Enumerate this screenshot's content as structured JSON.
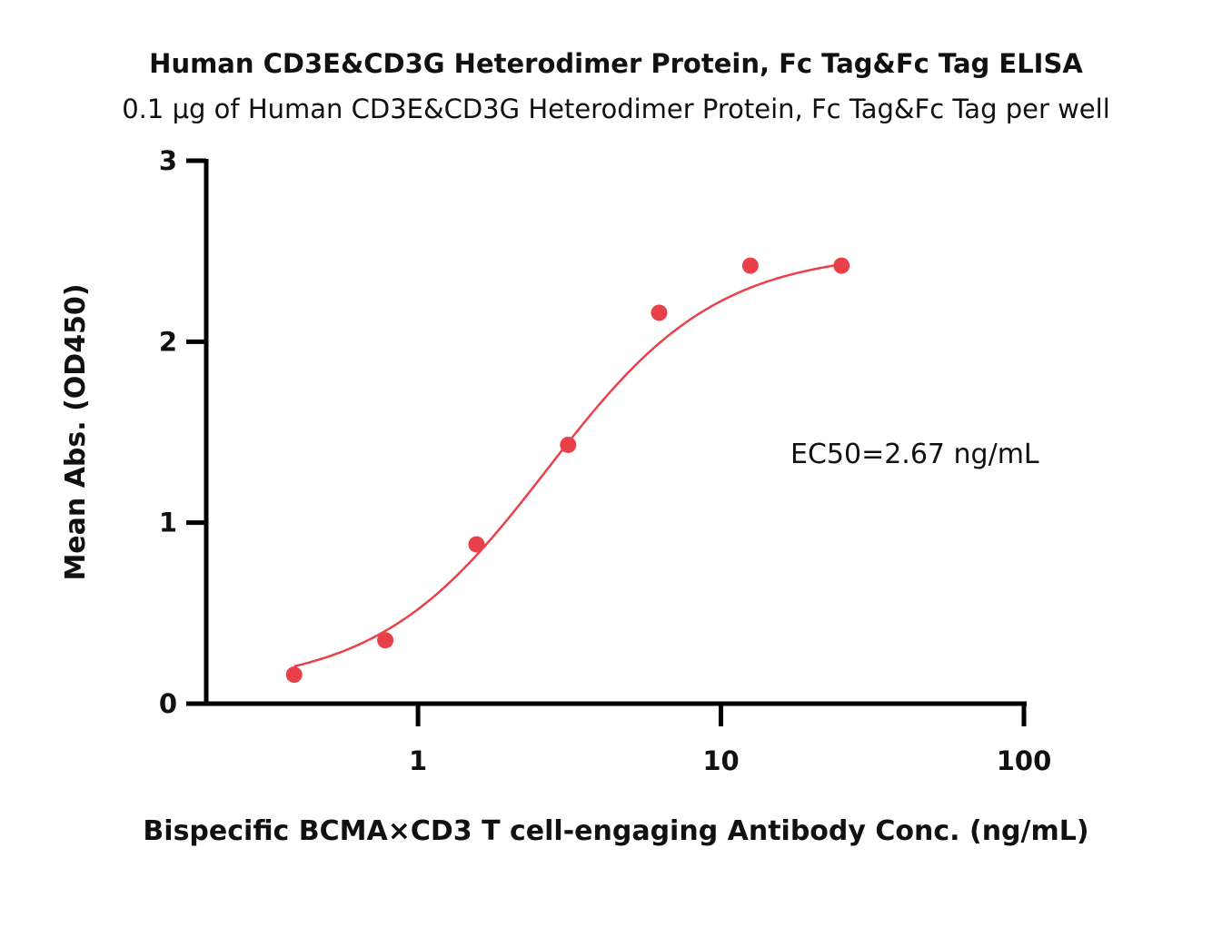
{
  "chart_data": {
    "type": "scatter",
    "title": "Human CD3E&CD3G Heterodimer Protein, Fc Tag&Fc Tag ELISA",
    "subtitle": "0.1 μg of Human CD3E&CD3G Heterodimer Protein, Fc Tag&Fc Tag per well",
    "xlabel": "Bispecific BCMA×CD3 T cell-engaging Antibody Conc. (ng/mL)",
    "ylabel": "Mean Abs. (OD450)",
    "x_scale": "log",
    "xlim": [
      0.2,
      100
    ],
    "ylim": [
      0,
      3
    ],
    "x_ticks": [
      1,
      10,
      100
    ],
    "x_tick_labels": [
      "1",
      "10",
      "100"
    ],
    "y_ticks": [
      0,
      1,
      2,
      3
    ],
    "y_tick_labels": [
      "0",
      "1",
      "2",
      "3"
    ],
    "grid": false,
    "annotation": "EC50=2.67 ng/mL",
    "series": [
      {
        "color": "#e8414a",
        "x": [
          0.39,
          0.78,
          1.56,
          3.13,
          6.25,
          12.5,
          25
        ],
        "y": [
          0.16,
          0.35,
          0.88,
          1.43,
          2.16,
          2.42,
          2.42
        ]
      }
    ],
    "fit": {
      "model": "4PL",
      "color": "#e8414a",
      "bottom": 0.09,
      "top": 2.5,
      "ec50": 2.67,
      "hill": 1.55,
      "x_range": [
        0.39,
        25
      ]
    }
  }
}
